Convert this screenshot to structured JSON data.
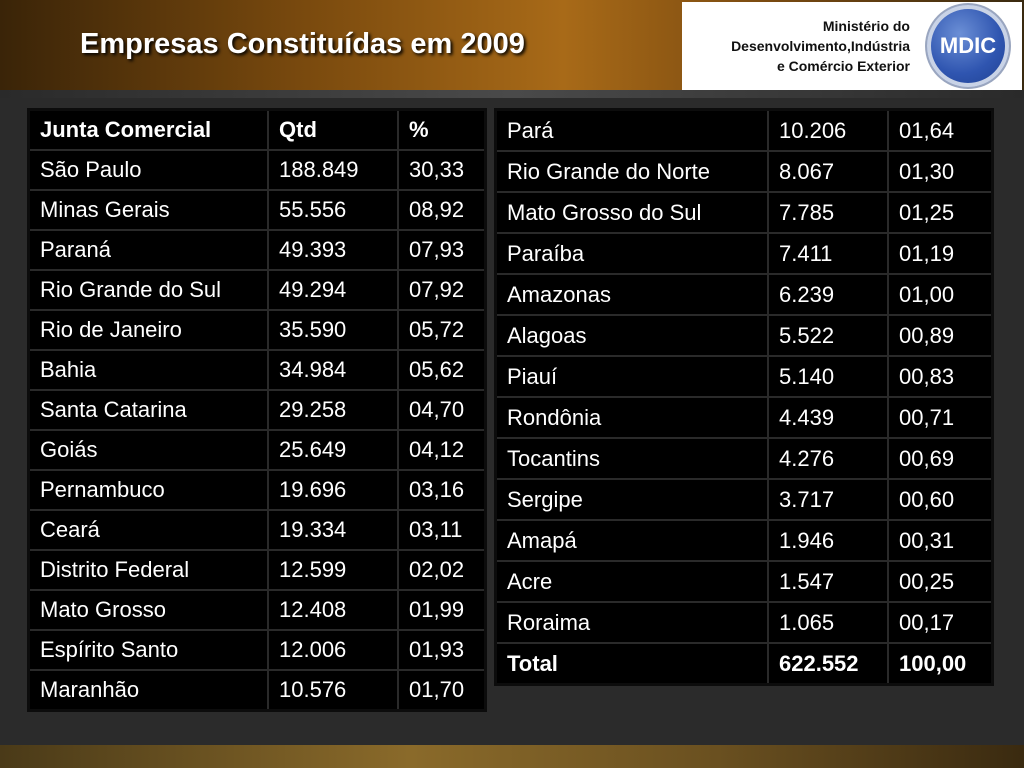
{
  "title": "Empresas Constituídas em 2009",
  "ministry": {
    "line1": "Ministério do",
    "line2": "Desenvolvimento,Indústria",
    "line3": "e Comércio Exterior",
    "logo_text": "MDIC"
  },
  "table_left": {
    "headers": [
      "Junta Comercial",
      "Qtd",
      "%"
    ],
    "rows": [
      [
        "São Paulo",
        "188.849",
        "30,33"
      ],
      [
        "Minas Gerais",
        "55.556",
        "08,92"
      ],
      [
        "Paraná",
        "49.393",
        "07,93"
      ],
      [
        "Rio Grande do Sul",
        "49.294",
        "07,92"
      ],
      [
        "Rio de Janeiro",
        "35.590",
        "05,72"
      ],
      [
        "Bahia",
        "34.984",
        "05,62"
      ],
      [
        "Santa Catarina",
        "29.258",
        "04,70"
      ],
      [
        "Goiás",
        "25.649",
        "04,12"
      ],
      [
        "Pernambuco",
        "19.696",
        "03,16"
      ],
      [
        "Ceará",
        "19.334",
        "03,11"
      ],
      [
        "Distrito Federal",
        "12.599",
        "02,02"
      ],
      [
        "Mato Grosso",
        "12.408",
        "01,99"
      ],
      [
        "Espírito Santo",
        "12.006",
        "01,93"
      ],
      [
        "Maranhão",
        "10.576",
        "01,70"
      ]
    ]
  },
  "table_right": {
    "rows": [
      [
        "Pará",
        "10.206",
        "01,64"
      ],
      [
        "Rio Grande do Norte",
        "8.067",
        "01,30"
      ],
      [
        "Mato Grosso do Sul",
        "7.785",
        "01,25"
      ],
      [
        "Paraíba",
        "7.411",
        "01,19"
      ],
      [
        "Amazonas",
        "6.239",
        "01,00"
      ],
      [
        "Alagoas",
        "5.522",
        "00,89"
      ],
      [
        "Piauí",
        "5.140",
        "00,83"
      ],
      [
        "Rondônia",
        "4.439",
        "00,71"
      ],
      [
        "Tocantins",
        "4.276",
        "00,69"
      ],
      [
        "Sergipe",
        "3.717",
        "00,60"
      ],
      [
        "Amapá",
        "1.946",
        "00,31"
      ],
      [
        "Acre",
        "1.547",
        "00,25"
      ],
      [
        "Roraima",
        "1.065",
        "00,17"
      ]
    ],
    "total": [
      "Total",
      "622.552",
      "100,00"
    ]
  }
}
